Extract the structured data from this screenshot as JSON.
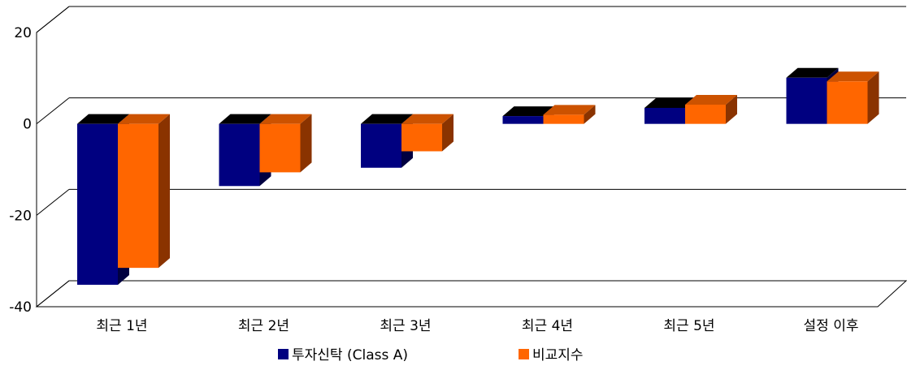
{
  "chart_data": {
    "type": "bar",
    "style": "3d-clustered-column",
    "categories": [
      "최근 1년",
      "최근 2년",
      "최근 3년",
      "최근 4년",
      "최근 5년",
      "설정 이후"
    ],
    "series": [
      {
        "name": "투자신탁 (Class A)",
        "color": "#000080",
        "values": [
          -35.2,
          -13.6,
          -9.6,
          1.7,
          3.5,
          10.1
        ]
      },
      {
        "name": "비교지수",
        "color": "#ff6600",
        "values": [
          -31.5,
          -10.6,
          -6.0,
          2.0,
          4.2,
          9.3
        ]
      }
    ],
    "yticks": [
      20,
      0,
      -20,
      -40
    ],
    "ylim": [
      -40,
      20
    ],
    "grid": true,
    "legend_position": "bottom"
  }
}
